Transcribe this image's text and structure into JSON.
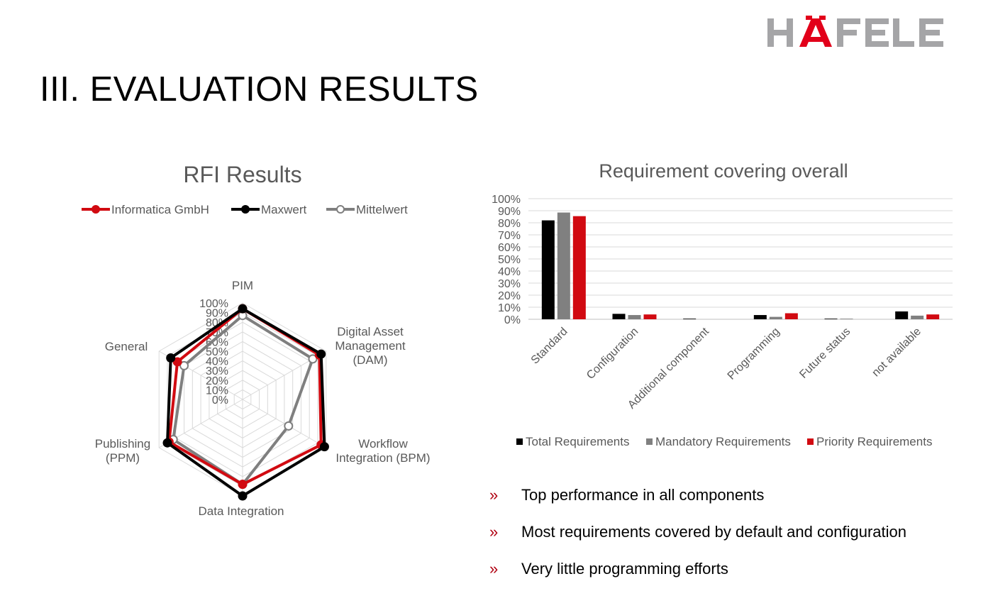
{
  "logo": {
    "text": "HÄFELE"
  },
  "page_title": "III. EVALUATION RESULTS",
  "bullet_symbol": "»",
  "bullets": [
    "Top performance in all components",
    "Most requirements covered by default and configuration",
    "Very little programming efforts"
  ],
  "chart_data": [
    {
      "type": "radar",
      "title": "RFI Results",
      "categories": [
        "PIM",
        "Digital Asset\nManagement\n(DAM)",
        "Workflow\nIntegration (BPM)",
        "Data Integration",
        "Publishing\n(PPM)",
        "General"
      ],
      "tick_labels": [
        "0%",
        "10%",
        "20%",
        "30%",
        "40%",
        "50%",
        "60%",
        "70%",
        "80%",
        "90%",
        "100%"
      ],
      "rlim": [
        0,
        1
      ],
      "legend_position": "top",
      "series": [
        {
          "name": "Informatica GmbH",
          "values": [
            0.94,
            0.92,
            0.94,
            0.88,
            0.88,
            0.78
          ],
          "color": "#d10a11",
          "marker": "filled"
        },
        {
          "name": "Maxwert",
          "values": [
            0.94,
            0.94,
            0.98,
            1.0,
            0.9,
            0.86
          ],
          "color": "#000000",
          "marker": "filled"
        },
        {
          "name": "Mittelwert",
          "values": [
            0.87,
            0.84,
            0.55,
            0.88,
            0.83,
            0.7
          ],
          "color": "#7f7f7f",
          "marker": "hollow"
        }
      ]
    },
    {
      "type": "bar",
      "title": "Requirement covering overall",
      "categories": [
        "Standard",
        "Configuration",
        "Additional component",
        "Programming",
        "Future status",
        "not available"
      ],
      "ylim": [
        0,
        100
      ],
      "y_tick_labels": [
        "0%",
        "10%",
        "20%",
        "30%",
        "40%",
        "50%",
        "60%",
        "70%",
        "80%",
        "90%",
        "100%"
      ],
      "grid": true,
      "legend_position": "bottom",
      "series": [
        {
          "name": "Total Requirements",
          "values": [
            82,
            4.5,
            0.5,
            3.5,
            0.5,
            6.5
          ],
          "color": "#000000"
        },
        {
          "name": "Mandatory Requirements",
          "values": [
            88.5,
            3.5,
            0,
            2,
            0.5,
            3
          ],
          "color": "#808080"
        },
        {
          "name": "Priority Requirements",
          "values": [
            85.5,
            4,
            0,
            5,
            0,
            4
          ],
          "color": "#d10a11"
        }
      ]
    }
  ]
}
